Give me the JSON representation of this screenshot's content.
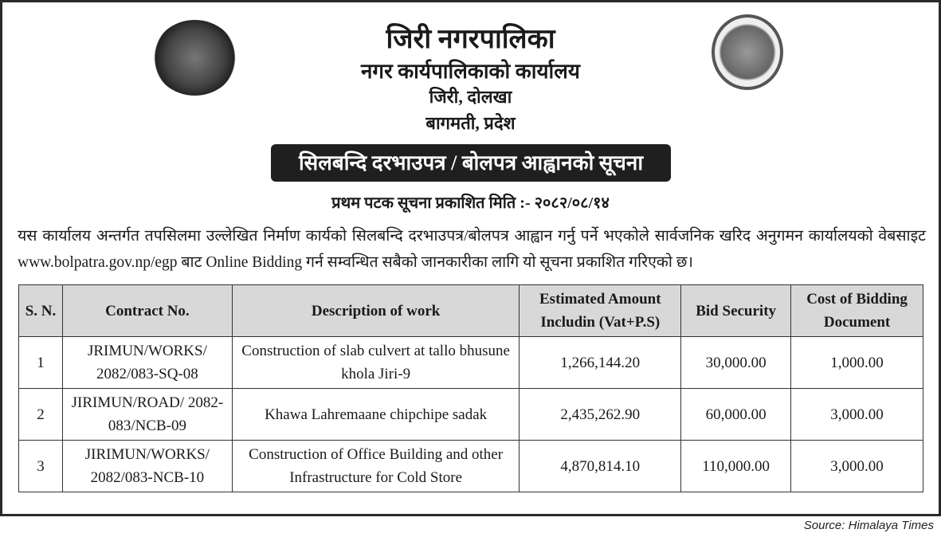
{
  "header": {
    "title": "जिरी नगरपालिका",
    "office": "नगर कार्यपालिकाको कार्यालय",
    "location": "जिरी, दोलखा",
    "province": "बागमती, प्रदेश"
  },
  "notice_title": "सिलबन्दि दरभाउपत्र / बोलपत्र आह्वानको सूचना",
  "publish_date": "प्रथम पटक सूचना प्रकाशित मिति :- २०८२/०८/१४",
  "body_text": "यस कार्यालय अन्तर्गत तपसिलमा उल्लेखित निर्माण कार्यको सिलबन्दि दरभाउपत्र/बोलपत्र आह्वान गर्नु पर्ने भएकोले सार्वजनिक खरिद अनुगमन कार्यालयको वेबसाइट www.bolpatra.gov.np/egp बाट Online Bidding गर्न सम्वन्धित सबैको जानकारीका लागि यो सूचना प्रकाशित गरिएको छ।",
  "table": {
    "headers": [
      "S. N.",
      "Contract No.",
      "Description of work",
      "Estimated Amount Includin (Vat+P.S)",
      "Bid Security",
      "Cost of Bidding Document"
    ],
    "rows": [
      [
        "1",
        "JRIMUN/WORKS/ 2082/083-SQ-08",
        "Construction of slab culvert at tallo bhusune khola Jiri-9",
        "1,266,144.20",
        "30,000.00",
        "1,000.00"
      ],
      [
        "2",
        "JIRIMUN/ROAD/ 2082-083/NCB-09",
        "Khawa Lahremaane chipchipe sadak",
        "2,435,262.90",
        "60,000.00",
        "3,000.00"
      ],
      [
        "3",
        "JIRIMUN/WORKS/ 2082/083-NCB-10",
        "Construction of Office Building and other Infrastructure for Cold Store",
        "4,870,814.10",
        "110,000.00",
        "3,000.00"
      ]
    ]
  },
  "source": "Source: Himalaya Times"
}
